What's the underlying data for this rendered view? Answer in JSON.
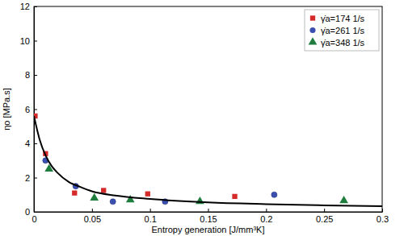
{
  "chart_data": {
    "type": "scatter",
    "x_label": "Entropy generation [J/mm³K]",
    "y_label": "ηo [MPa.s]",
    "xlim": [
      0,
      0.3
    ],
    "xticks": [
      0,
      0.05,
      0.1,
      0.15,
      0.2,
      0.25,
      0.3
    ],
    "ylim": [
      0,
      12
    ],
    "yticks": [
      0,
      2,
      4,
      6,
      8,
      10,
      12
    ],
    "grid": false,
    "legend": "upper right",
    "series": [
      {
        "name": "γ̇a=174 1/s",
        "type": "scatter",
        "marker": "square",
        "color": "#d42a2a",
        "x": [
          0.001,
          0.01,
          0.035,
          0.06,
          0.098,
          0.173
        ],
        "values": [
          5.6,
          3.4,
          1.1,
          1.25,
          1.05,
          0.9
        ]
      },
      {
        "name": "γ̇a=261 1/s",
        "type": "scatter",
        "marker": "circle",
        "color": "#3a4fb0",
        "x": [
          0.01,
          0.036,
          0.068,
          0.113,
          0.207
        ],
        "values": [
          3.0,
          1.5,
          0.6,
          0.6,
          1.0
        ]
      },
      {
        "name": "γ̇a=348 1/s",
        "type": "scatter",
        "marker": "triangle",
        "color": "#1e7d3c",
        "x": [
          0.013,
          0.052,
          0.083,
          0.143,
          0.267
        ],
        "values": [
          2.5,
          0.8,
          0.7,
          0.6,
          0.65
        ]
      },
      {
        "type": "line",
        "line_style": "solid",
        "color": "#000000",
        "x": [
          0,
          0.005,
          0.01,
          0.015,
          0.02,
          0.03,
          0.04,
          0.05,
          0.07,
          0.1,
          0.15,
          0.2,
          0.25,
          0.3
        ],
        "values": [
          5.6,
          4.2,
          3.3,
          2.7,
          2.3,
          1.75,
          1.45,
          1.2,
          0.95,
          0.75,
          0.55,
          0.45,
          0.38,
          0.33
        ]
      }
    ]
  }
}
